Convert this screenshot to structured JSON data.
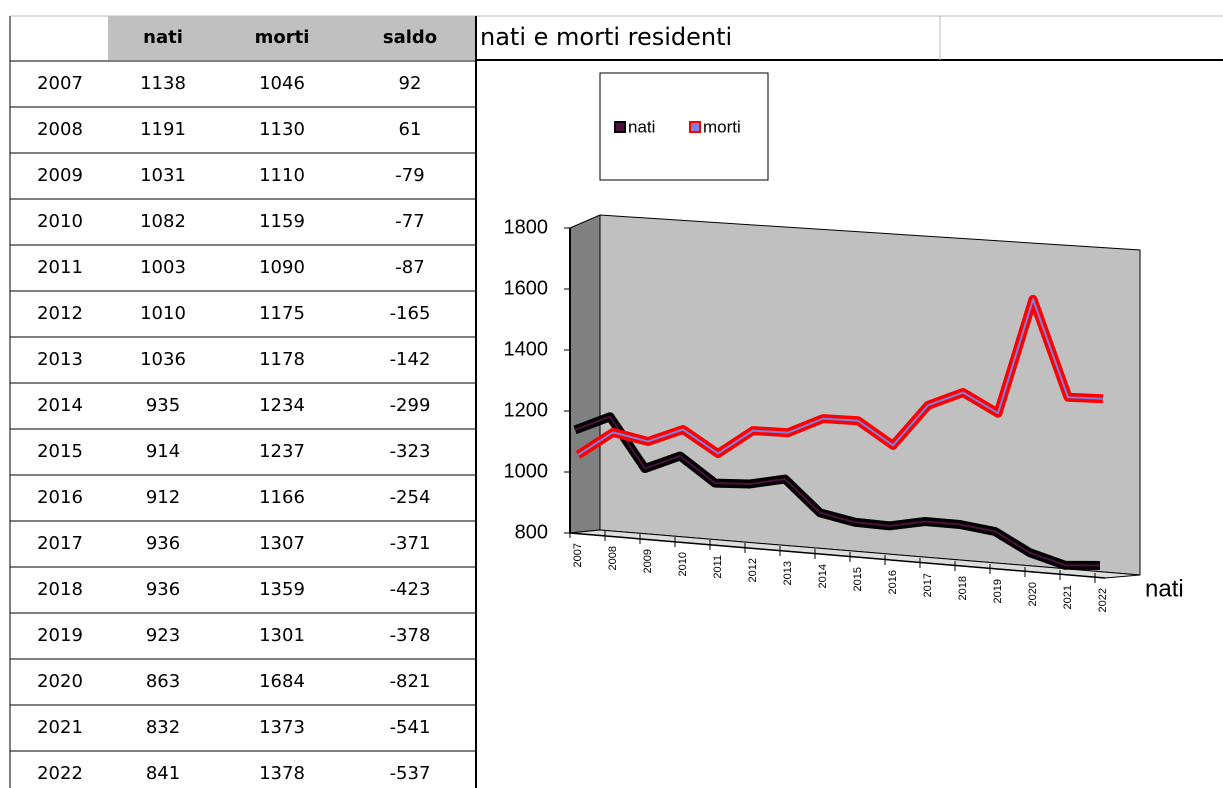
{
  "table": {
    "header": [
      "nati",
      "morti",
      "saldo"
    ],
    "rows": [
      [
        2007,
        1138,
        1046,
        92
      ],
      [
        2008,
        1191,
        1130,
        61
      ],
      [
        2009,
        1031,
        1110,
        -79
      ],
      [
        2010,
        1082,
        1159,
        -77
      ],
      [
        2011,
        1003,
        1090,
        -87
      ],
      [
        2012,
        1010,
        1175,
        -165
      ],
      [
        2013,
        1036,
        1178,
        -142
      ],
      [
        2014,
        935,
        1234,
        -299
      ],
      [
        2015,
        914,
        1237,
        -323
      ],
      [
        2016,
        912,
        1166,
        -254
      ],
      [
        2017,
        936,
        1307,
        -371
      ],
      [
        2018,
        936,
        1359,
        -423
      ],
      [
        2019,
        923,
        1301,
        -378
      ],
      [
        2020,
        863,
        1684,
        -821
      ],
      [
        2021,
        832,
        1373,
        -541
      ],
      [
        2022,
        841,
        1378,
        -537
      ]
    ]
  },
  "chart_data": {
    "type": "line",
    "title": "nati e morti residenti",
    "depth_label": "nati",
    "categories": [
      "2007",
      "2008",
      "2009",
      "2010",
      "2011",
      "2012",
      "2013",
      "2014",
      "2015",
      "2016",
      "2017",
      "2018",
      "2019",
      "2020",
      "2021",
      "2022"
    ],
    "series": [
      {
        "name": "nati",
        "color": "#000000",
        "inner_color": "#4d0f3d",
        "values": [
          1138,
          1191,
          1031,
          1082,
          1003,
          1010,
          1036,
          935,
          914,
          912,
          936,
          936,
          923,
          863,
          832,
          841
        ]
      },
      {
        "name": "morti",
        "color": "#ff0000",
        "inner_color": "#7f7fe0",
        "values": [
          1046,
          1130,
          1110,
          1159,
          1090,
          1175,
          1178,
          1234,
          1237,
          1166,
          1307,
          1359,
          1301,
          1684,
          1373,
          1378
        ]
      }
    ],
    "ylim": [
      800,
      1800
    ],
    "yticks": [
      800,
      1000,
      1200,
      1400,
      1600,
      1800
    ],
    "legend": "top-left"
  }
}
